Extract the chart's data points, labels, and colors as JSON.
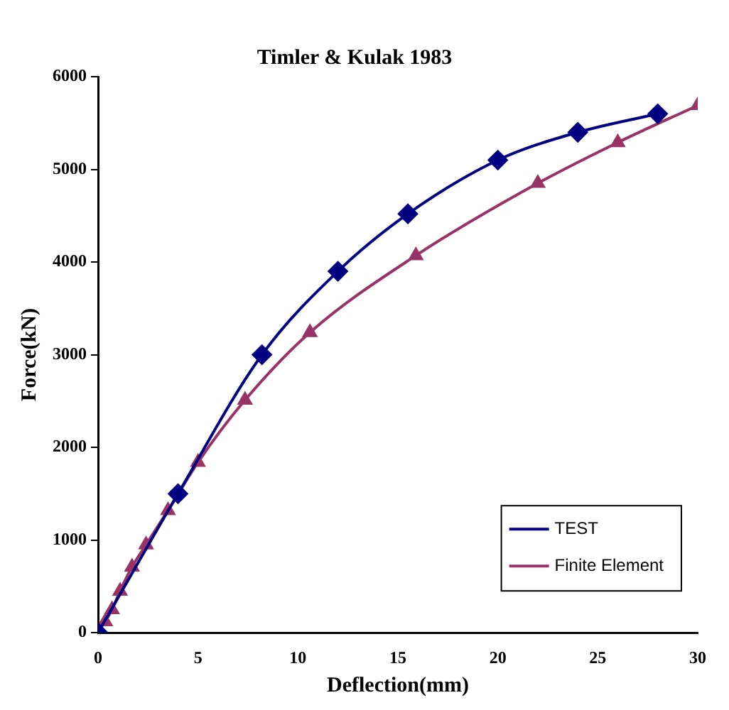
{
  "chart_data": {
    "type": "line",
    "title": "Timler & Kulak 1983",
    "xlabel": "Deflection(mm)",
    "ylabel": "Force(kN)",
    "xlim": [
      0,
      30
    ],
    "xticks": [
      0,
      5,
      10,
      15,
      20,
      25,
      30
    ],
    "ylim": [
      0,
      6000
    ],
    "yticks": [
      0,
      1000,
      2000,
      3000,
      4000,
      5000,
      6000
    ],
    "grid": false,
    "legend": "bottom right",
    "series": [
      {
        "name": "TEST",
        "color": "#000080",
        "marker": "diamond",
        "x": [
          0,
          4,
          8.2,
          12,
          15.5,
          20,
          24,
          28
        ],
        "values": [
          0,
          1500,
          3000,
          3900,
          4520,
          5100,
          5400,
          5600
        ]
      },
      {
        "name": "Finite Element",
        "color": "#993366",
        "marker": "triangle",
        "x": [
          0.36,
          0.7,
          1.1,
          1.7,
          2.4,
          3.5,
          5,
          7.35,
          10.6,
          15.9,
          22,
          26,
          30
        ],
        "values": [
          120,
          250,
          450,
          710,
          950,
          1320,
          1840,
          2510,
          3240,
          4070,
          4850,
          5290,
          5690
        ]
      }
    ]
  }
}
